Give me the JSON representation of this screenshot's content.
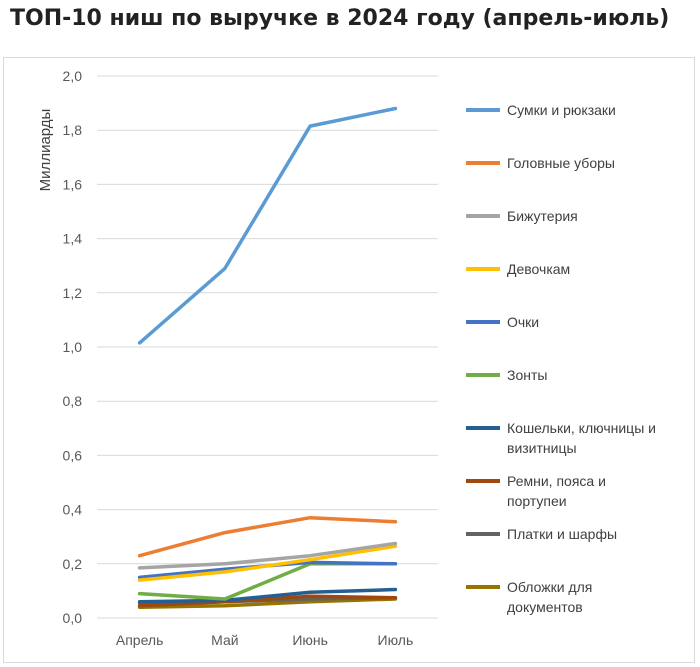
{
  "title": "ТОП-10 ниш по выручке в 2024 году (апрель-июль)",
  "chart_data": {
    "type": "line",
    "title": "ТОП-10 ниш по выручке в 2024 году (апрель-июль)",
    "xlabel": "",
    "ylabel": "Миллиарды",
    "ylim": [
      0,
      2.0
    ],
    "yticks": [
      "0,0",
      "0,2",
      "0,4",
      "0,6",
      "0,8",
      "1,0",
      "1,2",
      "1,4",
      "1,6",
      "1,8",
      "2,0"
    ],
    "categories": [
      "Апрель",
      "Май",
      "Июнь",
      "Июль"
    ],
    "grid": true,
    "legend_position": "right",
    "series": [
      {
        "name": "Сумки и рюкзаки",
        "legend_lines": [
          "Сумки и рюкзаки"
        ],
        "color": "#5b9bd5",
        "values": [
          1.015,
          1.29,
          1.815,
          1.88
        ]
      },
      {
        "name": "Головные уборы",
        "legend_lines": [
          "Головные уборы"
        ],
        "color": "#ed7d31",
        "values": [
          0.23,
          0.315,
          0.37,
          0.355
        ]
      },
      {
        "name": "Бижутерия",
        "legend_lines": [
          "Бижутерия"
        ],
        "color": "#a5a5a5",
        "values": [
          0.185,
          0.2,
          0.23,
          0.275
        ]
      },
      {
        "name": "Девочкам",
        "legend_lines": [
          "Девочкам"
        ],
        "color": "#ffc000",
        "values": [
          0.14,
          0.17,
          0.215,
          0.265
        ]
      },
      {
        "name": "Очки",
        "legend_lines": [
          "Очки"
        ],
        "color": "#4472c4",
        "values": [
          0.15,
          0.18,
          0.205,
          0.2
        ]
      },
      {
        "name": "Зонты",
        "legend_lines": [
          "Зонты"
        ],
        "color": "#70ad47",
        "values": [
          0.09,
          0.07,
          0.2,
          0.2
        ]
      },
      {
        "name": "Кошельки, ключницы и визитницы",
        "legend_lines": [
          "Кошельки, ключницы и",
          "визитницы"
        ],
        "color": "#255e91",
        "values": [
          0.06,
          0.065,
          0.095,
          0.105
        ]
      },
      {
        "name": "Ремни, пояса и портупеи",
        "legend_lines": [
          "Ремни, пояса и",
          "портупеи"
        ],
        "color": "#9e480e",
        "values": [
          0.045,
          0.06,
          0.08,
          0.075
        ]
      },
      {
        "name": "Платки и шарфы",
        "legend_lines": [
          "Платки и шарфы"
        ],
        "color": "#636363",
        "values": [
          0.055,
          0.06,
          0.07,
          0.075
        ]
      },
      {
        "name": "Обложки для документов",
        "legend_lines": [
          "Обложки для",
          "документов"
        ],
        "color": "#997300",
        "values": [
          0.04,
          0.045,
          0.06,
          0.07
        ]
      }
    ]
  }
}
